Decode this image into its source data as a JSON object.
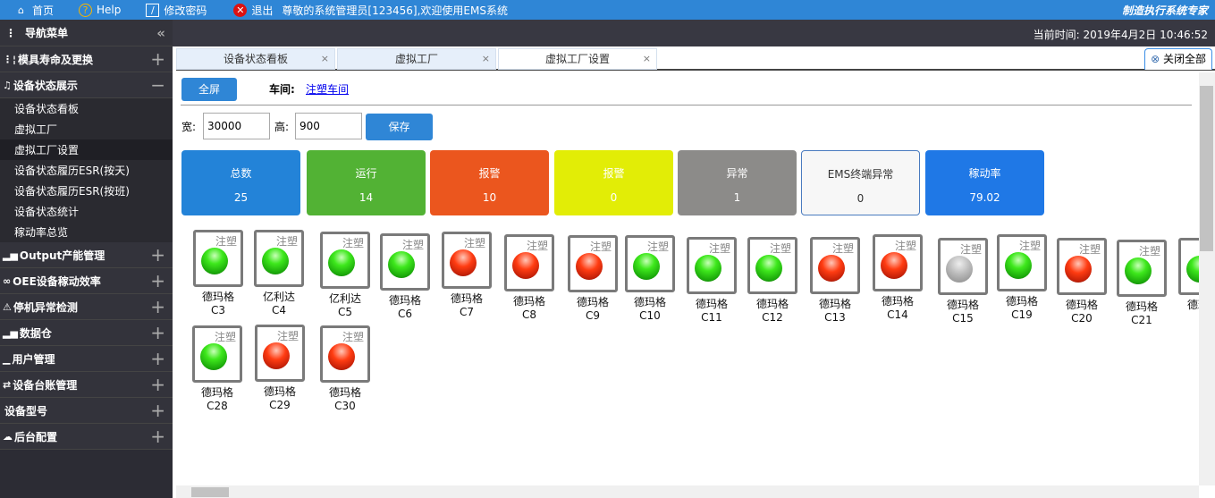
{
  "topbar": {
    "home": "首页",
    "help": "Help",
    "change_pwd": "修改密码",
    "logout": "退出",
    "welcome": "尊敬的系统管理员[123456],欢迎使用EMS系统",
    "brand": "制造执行系统专家"
  },
  "sidebar": {
    "title": "导航菜单",
    "groups": [
      {
        "label": "模具寿命及更换",
        "icon": "mold-icon"
      },
      {
        "label": "设备状态展示",
        "icon": "bell-icon",
        "expanded": true,
        "items": [
          "设备状态看板",
          "虚拟工厂",
          "虚拟工厂设置",
          "设备状态履历ESR(按天)",
          "设备状态履历ESR(按班)",
          "设备状态统计",
          "稼动率总览"
        ],
        "active": "虚拟工厂设置"
      },
      {
        "label": "Output产能管理",
        "icon": "bar-chart-icon"
      },
      {
        "label": "OEE设备稼动效率",
        "icon": "oee-icon"
      },
      {
        "label": "停机异常检测",
        "icon": "warning-icon"
      },
      {
        "label": "数据仓",
        "icon": "bar-chart-icon"
      },
      {
        "label": "用户管理",
        "icon": "user-icon"
      },
      {
        "label": "设备台账管理",
        "icon": "ledger-icon"
      },
      {
        "label": "设备型号",
        "icon": ""
      },
      {
        "label": "后台配置",
        "icon": "cloud-icon"
      }
    ]
  },
  "header": {
    "time": "当前时间: 2019年4月2日 10:46:52"
  },
  "tabs": [
    {
      "label": "设备状态看板"
    },
    {
      "label": "虚拟工厂"
    },
    {
      "label": "虚拟工厂设置",
      "active": true
    }
  ],
  "close_all": "关闭全部",
  "toolbar": {
    "fullscreen": "全屏",
    "workshop_label": "车间:",
    "workshop": "注塑车间",
    "width_label": "宽:",
    "width": "30000",
    "height_label": "高:",
    "height": "900",
    "save": "保存"
  },
  "cards": [
    {
      "label": "总数",
      "value": "25",
      "color": "#2383d8"
    },
    {
      "label": "运行",
      "value": "14",
      "color": "#52b234"
    },
    {
      "label": "报警",
      "value": "10",
      "color": "#eb561e"
    },
    {
      "label": "报警",
      "value": "0",
      "color": "#e2ed06"
    },
    {
      "label": "异常",
      "value": "1",
      "color": "#8c8b89"
    },
    {
      "label": "EMS终端异常",
      "value": "0",
      "color": "#f7f7f7"
    },
    {
      "label": "稼动率",
      "value": "79.02",
      "color": "#1f78e6"
    }
  ],
  "machines": [
    {
      "type": "注塑",
      "name": "德玛格",
      "code": "C3",
      "status": "green"
    },
    {
      "type": "注塑",
      "name": "亿利达",
      "code": "C4",
      "status": "green"
    },
    {
      "type": "注塑",
      "name": "亿利达",
      "code": "C5",
      "status": "green"
    },
    {
      "type": "注塑",
      "name": "德玛格",
      "code": "C6",
      "status": "green"
    },
    {
      "type": "注塑",
      "name": "德玛格",
      "code": "C7",
      "status": "red"
    },
    {
      "type": "注塑",
      "name": "德玛格",
      "code": "C8",
      "status": "red"
    },
    {
      "type": "注塑",
      "name": "德玛格",
      "code": "C9",
      "status": "red"
    },
    {
      "type": "注塑",
      "name": "德玛格",
      "code": "C10",
      "status": "green"
    },
    {
      "type": "注塑",
      "name": "德玛格",
      "code": "C11",
      "status": "green"
    },
    {
      "type": "注塑",
      "name": "德玛格",
      "code": "C12",
      "status": "green"
    },
    {
      "type": "注塑",
      "name": "德玛格",
      "code": "C13",
      "status": "red"
    },
    {
      "type": "注塑",
      "name": "德玛格",
      "code": "C14",
      "status": "red"
    },
    {
      "type": "注塑",
      "name": "德玛格",
      "code": "C15",
      "status": "gray"
    },
    {
      "type": "注塑",
      "name": "德玛格",
      "code": "C19",
      "status": "green"
    },
    {
      "type": "注塑",
      "name": "德玛格",
      "code": "C20",
      "status": "red"
    },
    {
      "type": "注塑",
      "name": "德玛格",
      "code": "C21",
      "status": "green"
    },
    {
      "type": "注塑",
      "name": "德玛格",
      "code": "C",
      "status": "green"
    },
    {
      "type": "注塑",
      "name": "德玛格",
      "code": "C28",
      "status": "green"
    },
    {
      "type": "注塑",
      "name": "德玛格",
      "code": "C29",
      "status": "red"
    },
    {
      "type": "注塑",
      "name": "德玛格",
      "code": "C30",
      "status": "red"
    }
  ]
}
